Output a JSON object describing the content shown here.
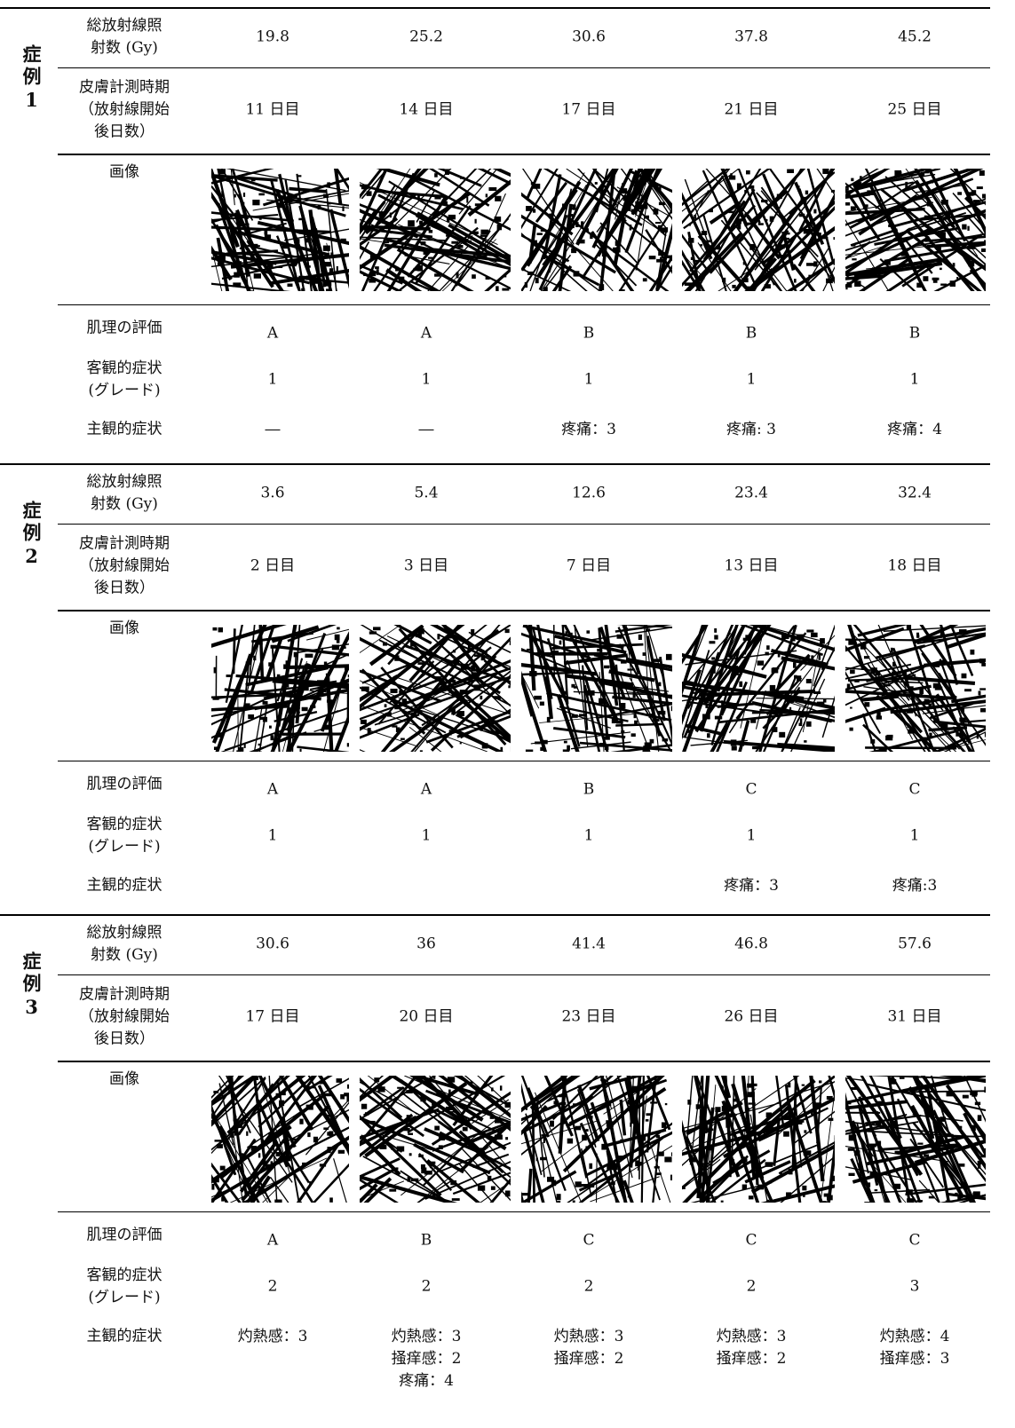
{
  "cases": [
    {
      "label": "症例1",
      "dose": {
        "label": "総放射線照\n射数 (Gy)",
        "values": [
          19.8,
          25.2,
          30.6,
          37.8,
          45.2
        ]
      },
      "timing": {
        "label": "皮膚計測時期\n（放射線開始\n後日数）",
        "values": [
          "11 日目",
          "14 日目",
          "17 日目",
          "21 日目",
          "25 日目"
        ]
      },
      "image": {
        "label": "画像"
      },
      "texture": {
        "label": "肌理の評価",
        "values": [
          "A",
          "A",
          "B",
          "B",
          "B"
        ]
      },
      "grade": {
        "label": "客観的症状\n(グレード)",
        "values": [
          1,
          1,
          1,
          1,
          1
        ]
      },
      "subjective": {
        "label": "主観的症状",
        "values": [
          "―",
          "―",
          "疼痛：3",
          "疼痛: 3",
          "疼痛：4"
        ]
      }
    },
    {
      "label": "症例2",
      "dose": {
        "label": "総放射線照\n射数 (Gy)",
        "values": [
          3.6,
          5.4,
          12.6,
          23.4,
          32.4
        ]
      },
      "timing": {
        "label": "皮膚計測時期\n（放射線開始\n後日数）",
        "values": [
          "2 日目",
          "3 日目",
          "7 日目",
          "13 日目",
          "18 日目"
        ]
      },
      "image": {
        "label": "画像"
      },
      "texture": {
        "label": "肌理の評価",
        "values": [
          "A",
          "A",
          "B",
          "C",
          "C"
        ]
      },
      "grade": {
        "label": "客観的症状\n(グレード)",
        "values": [
          1,
          1,
          1,
          1,
          1
        ]
      },
      "subjective": {
        "label": "主観的症状",
        "values": [
          null,
          null,
          null,
          "疼痛：3",
          "疼痛:3"
        ]
      }
    },
    {
      "label": "症例3",
      "dose": {
        "label": "総放射線照\n射数 (Gy)",
        "values": [
          30.6,
          36,
          41.4,
          46.8,
          57.6
        ]
      },
      "timing": {
        "label": "皮膚計測時期\n（放射線開始\n後日数）",
        "values": [
          "17 日目",
          "20 日目",
          "23 日目",
          "26 日目",
          "31 日目"
        ]
      },
      "image": {
        "label": "画像"
      },
      "texture": {
        "label": "肌理の評価",
        "values": [
          "A",
          "B",
          "C",
          "C",
          "C"
        ]
      },
      "grade": {
        "label": "客観的症状\n(グレード)",
        "values": [
          2,
          2,
          2,
          2,
          3
        ]
      },
      "subjective": {
        "label": "主観的症状",
        "values": [
          "灼熱感：3",
          "灼熱感：3\n掻痒感：2\n疼痛：4",
          "灼熱感：3\n掻痒感：2",
          "灼熱感：3\n掻痒感：2",
          "灼熱感：4\n掻痒感：3"
        ]
      }
    }
  ]
}
